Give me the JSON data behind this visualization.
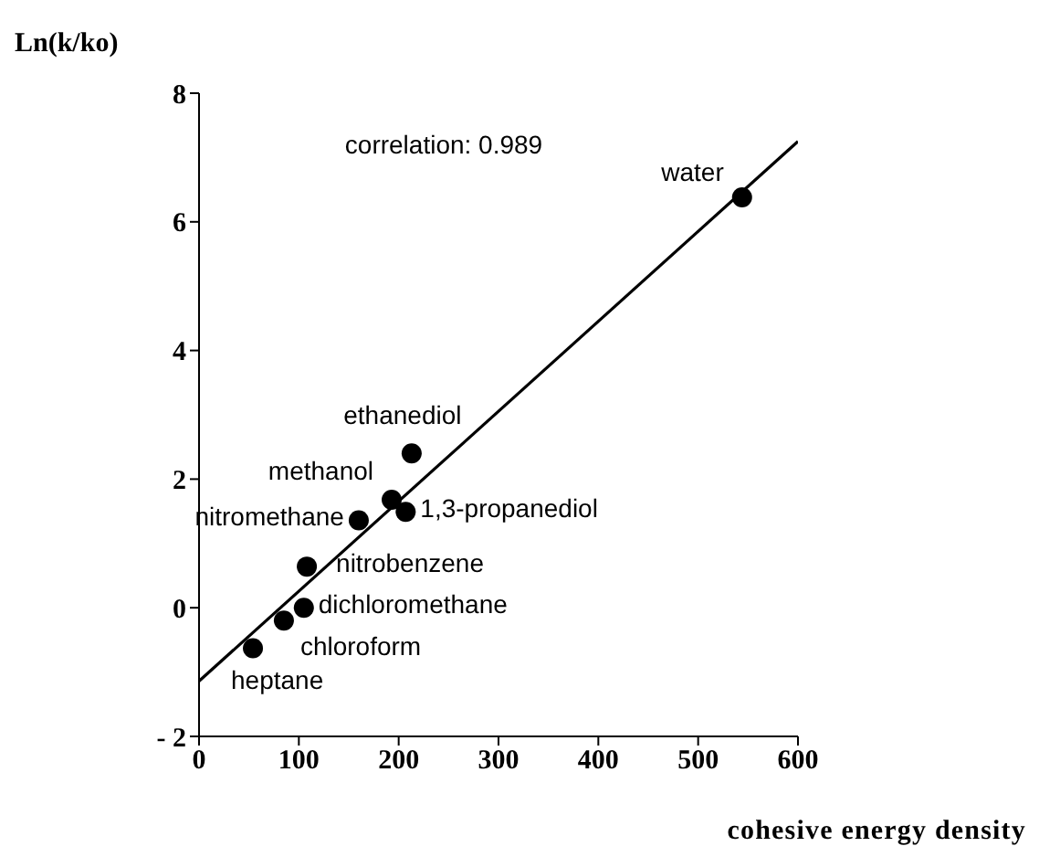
{
  "chart_data": {
    "type": "scatter",
    "xlabel": "cohesive energy density",
    "ylabel": "Ln(k/ko)",
    "xlim": [
      0,
      600
    ],
    "xticks": [
      0,
      100,
      200,
      300,
      400,
      500,
      600
    ],
    "ylim": [
      -2,
      8
    ],
    "yticks": [
      -2,
      0,
      2,
      4,
      6,
      8
    ],
    "grid": false,
    "marker": "circle",
    "series": [
      {
        "color": "#000000",
        "x": [
          544,
          213,
          193,
          207,
          160,
          108,
          105,
          85,
          54
        ],
        "values": [
          6.38,
          2.4,
          1.68,
          1.49,
          1.36,
          0.64,
          0.0,
          -0.2,
          -0.63
        ]
      },
      {
        "type": "line",
        "color": "#000000",
        "x": [
          0,
          600
        ],
        "values": [
          -1.14,
          7.25
        ],
        "line_style": "solid",
        "marker": "none"
      }
    ],
    "annotations": [
      "correlation: 0.989",
      {
        "text": "water",
        "x": 544,
        "y": 6.38
      },
      {
        "text": "ethanediol",
        "x": 213,
        "y": 2.4
      },
      {
        "text": "methanol",
        "x": 193,
        "y": 1.68
      },
      {
        "text": "1,3-propanediol",
        "x": 207,
        "y": 1.49
      },
      {
        "text": "nitromethane",
        "x": 160,
        "y": 1.36
      },
      {
        "text": "nitrobenzene",
        "x": 108,
        "y": 0.64
      },
      {
        "text": "dichloromethane",
        "x": 105,
        "y": 0.0
      },
      {
        "text": "chloroform",
        "x": 85,
        "y": -0.2
      },
      {
        "text": "heptane",
        "x": 54,
        "y": -0.63
      }
    ]
  }
}
